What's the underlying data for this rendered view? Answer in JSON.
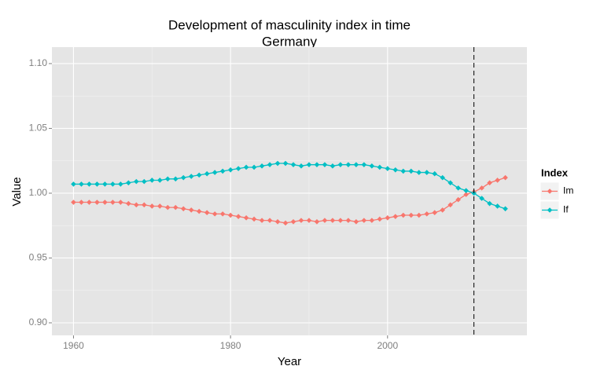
{
  "chart_data": {
    "type": "line",
    "title": "Development of masculinity index in time",
    "subtitle": "Germany",
    "x_label": "Year",
    "y_label": "Value",
    "legend_title": "Index",
    "legend_position": "right",
    "grid": true,
    "xlim": [
      1957.25,
      2017.75
    ],
    "ylim": [
      0.8903,
      1.1127
    ],
    "xticks": [
      1960,
      1980,
      2000
    ],
    "yticks": [
      {
        "value": 0.9,
        "label": "0.90"
      },
      {
        "value": 0.95,
        "label": "0.95"
      },
      {
        "value": 1.0,
        "label": "1.00"
      },
      {
        "value": 1.05,
        "label": "1.05"
      },
      {
        "value": 1.1,
        "label": "1.10"
      }
    ],
    "vline": 2011,
    "x": [
      1960,
      1961,
      1962,
      1963,
      1964,
      1965,
      1966,
      1967,
      1968,
      1969,
      1970,
      1971,
      1972,
      1973,
      1974,
      1975,
      1976,
      1977,
      1978,
      1979,
      1980,
      1981,
      1982,
      1983,
      1984,
      1985,
      1986,
      1987,
      1988,
      1989,
      1990,
      1991,
      1992,
      1993,
      1994,
      1995,
      1996,
      1997,
      1998,
      1999,
      2000,
      2001,
      2002,
      2003,
      2004,
      2005,
      2006,
      2007,
      2008,
      2009,
      2010,
      2011,
      2012,
      2013,
      2014,
      2015
    ],
    "series": [
      {
        "name": "Im",
        "color": "#F8766D",
        "values": [
          0.993,
          0.993,
          0.993,
          0.993,
          0.993,
          0.993,
          0.993,
          0.992,
          0.991,
          0.991,
          0.99,
          0.99,
          0.989,
          0.989,
          0.988,
          0.987,
          0.986,
          0.985,
          0.984,
          0.984,
          0.983,
          0.982,
          0.981,
          0.98,
          0.979,
          0.979,
          0.978,
          0.977,
          0.978,
          0.979,
          0.979,
          0.978,
          0.979,
          0.979,
          0.979,
          0.979,
          0.978,
          0.979,
          0.979,
          0.98,
          0.981,
          0.982,
          0.983,
          0.983,
          0.983,
          0.984,
          0.985,
          0.987,
          0.991,
          0.995,
          0.999,
          1.001,
          1.004,
          1.008,
          1.01,
          1.012
        ]
      },
      {
        "name": "If",
        "color": "#00BFC4",
        "values": [
          1.007,
          1.007,
          1.007,
          1.007,
          1.007,
          1.007,
          1.007,
          1.008,
          1.009,
          1.009,
          1.01,
          1.01,
          1.011,
          1.011,
          1.012,
          1.013,
          1.014,
          1.015,
          1.016,
          1.017,
          1.018,
          1.019,
          1.02,
          1.02,
          1.021,
          1.022,
          1.023,
          1.023,
          1.022,
          1.021,
          1.022,
          1.022,
          1.022,
          1.021,
          1.022,
          1.022,
          1.022,
          1.022,
          1.021,
          1.02,
          1.019,
          1.018,
          1.017,
          1.017,
          1.016,
          1.016,
          1.015,
          1.012,
          1.008,
          1.004,
          1.002,
          1.0,
          0.996,
          0.992,
          0.99,
          0.988
        ]
      }
    ]
  }
}
